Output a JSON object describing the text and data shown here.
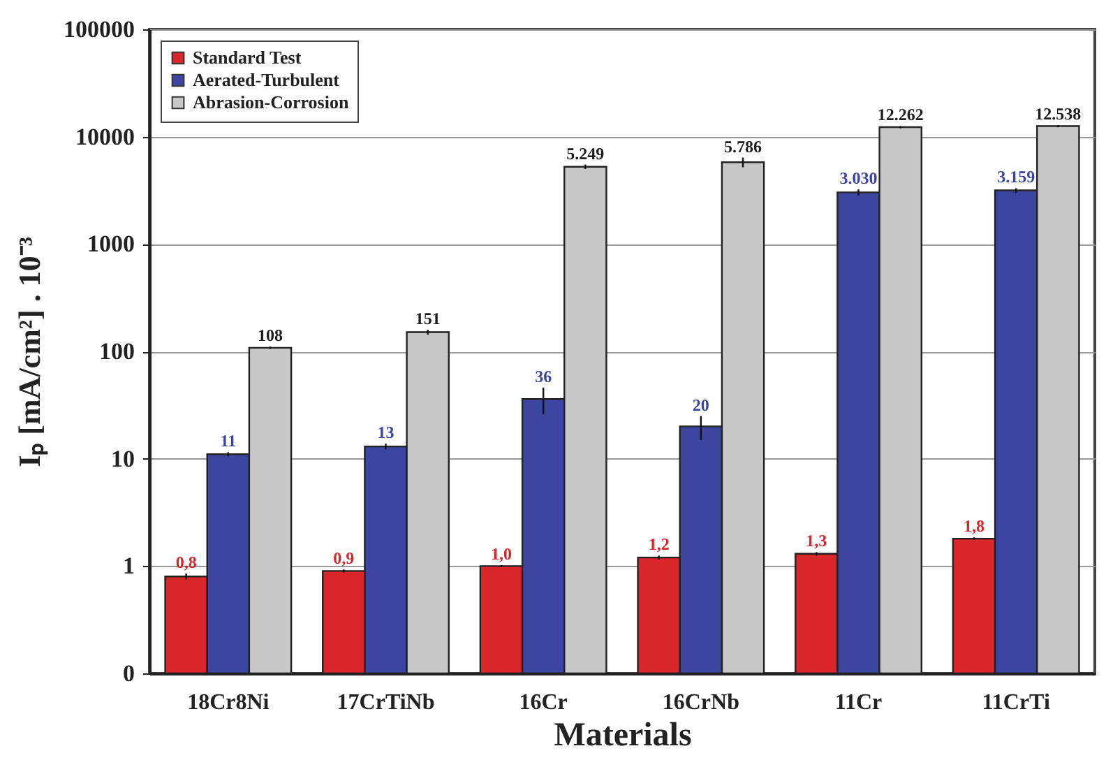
{
  "chart_data": {
    "type": "bar",
    "xlabel": "Materials",
    "ylabel": "Iₚ [mA/cm²] . 10⁻³",
    "categories": [
      "18Cr8Ni",
      "17CrTiNb",
      "16Cr",
      "16CrNb",
      "11Cr",
      "11CrTi"
    ],
    "series": [
      {
        "name": "Standard Test",
        "color": "#d9262b",
        "values": [
          0.8,
          0.9,
          1.0,
          1.2,
          1.3,
          1.8
        ],
        "errors": [
          0.05,
          0.03,
          0.02,
          0.05,
          0.05,
          0.05
        ],
        "value_labels": [
          "0,8",
          "0,9",
          "1,0",
          "1,2",
          "1,3",
          "1,8"
        ]
      },
      {
        "name": "Aerated-Turbulent",
        "color": "#3c46a0",
        "values": [
          11,
          13,
          36,
          20,
          3030,
          3159
        ],
        "errors": [
          0.5,
          0.8,
          10,
          5,
          200,
          150
        ],
        "value_labels": [
          "11",
          "13",
          "36",
          "20",
          "3.030",
          "3.159"
        ]
      },
      {
        "name": "Abrasion-Corrosion",
        "color": "#c8c8c8",
        "values": [
          108,
          151,
          5249,
          5786,
          12262,
          12538
        ],
        "errors": [
          3,
          8,
          250,
          600,
          300,
          300
        ],
        "value_labels": [
          "108",
          "151",
          "5.249",
          "5.786",
          "12.262",
          "12.538"
        ]
      }
    ],
    "log": true,
    "ylim": [
      0.1,
      100000
    ],
    "yticks": [
      {
        "value": 0.1,
        "label": "0"
      },
      1,
      10,
      100,
      1000,
      10000,
      100000
    ],
    "grid": "y",
    "legend": "top left"
  }
}
